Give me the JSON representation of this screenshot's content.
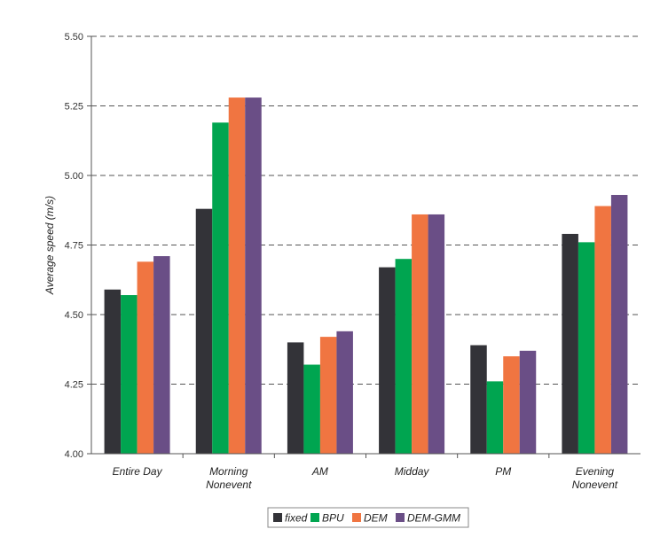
{
  "chart_data": {
    "type": "bar",
    "title": "",
    "xlabel": "",
    "ylabel": "Average speed (m/s)",
    "ylim": [
      4.0,
      5.5
    ],
    "yticks": [
      "4.00",
      "4.25",
      "4.50",
      "4.75",
      "5.00",
      "5.25",
      "5.50"
    ],
    "grid": true,
    "legend_position": "bottom-center",
    "categories": [
      [
        "Entire Day"
      ],
      [
        "Morning",
        "Nonevent"
      ],
      [
        "AM"
      ],
      [
        "Midday"
      ],
      [
        "PM"
      ],
      [
        "Evening",
        "Nonevent"
      ]
    ],
    "series": [
      {
        "name": "fixed",
        "color": "#333338",
        "values": [
          4.59,
          4.88,
          4.4,
          4.67,
          4.39,
          4.79
        ]
      },
      {
        "name": "BPU",
        "color": "#00a550",
        "values": [
          4.57,
          5.19,
          4.32,
          4.7,
          4.26,
          4.76
        ]
      },
      {
        "name": "DEM",
        "color": "#f07541",
        "values": [
          4.69,
          5.28,
          4.42,
          4.86,
          4.35,
          4.89
        ]
      },
      {
        "name": "DEM-GMM",
        "color": "#6a4e86",
        "values": [
          4.71,
          5.28,
          4.44,
          4.86,
          4.37,
          4.93
        ]
      }
    ]
  }
}
